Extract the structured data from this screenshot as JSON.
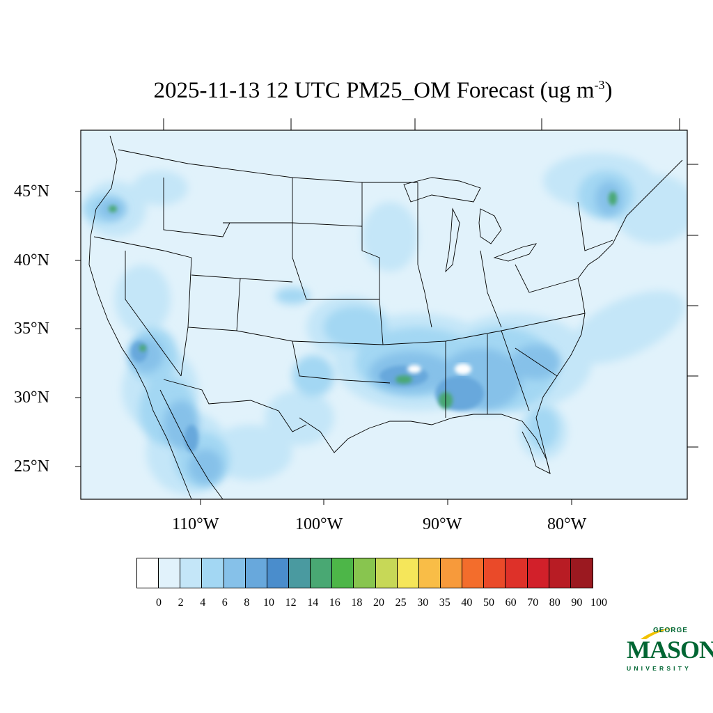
{
  "title": {
    "main": "2025-11-13 12 UTC PM25_OM Forecast (ug m",
    "exponent": "-3",
    "close": ")"
  },
  "lat_labels": [
    "45°N",
    "40°N",
    "35°N",
    "30°N",
    "25°N"
  ],
  "lon_labels": [
    "110°W",
    "100°W",
    "90°W",
    "80°W"
  ],
  "colorbar": {
    "labels": [
      "0",
      "2",
      "4",
      "6",
      "8",
      "10",
      "12",
      "14",
      "16",
      "18",
      "20",
      "25",
      "30",
      "35",
      "40",
      "50",
      "60",
      "70",
      "80",
      "90",
      "100"
    ],
    "colors": [
      "#ffffff",
      "#e1f2fb",
      "#c4e6f8",
      "#a3d7f3",
      "#86c1e9",
      "#68a8dc",
      "#4a8dcc",
      "#4a9aa0",
      "#49a873",
      "#4db648",
      "#88c54f",
      "#c7d857",
      "#f5e65a",
      "#f9bd47",
      "#f79a3b",
      "#f36d2c",
      "#ea4a29",
      "#de3129",
      "#d2202a",
      "#b81c24",
      "#9b1920"
    ]
  },
  "logo": {
    "line1": "GEORGE",
    "line2": "MASON",
    "line3": "UNIVERSITY",
    "color": "#006633",
    "accent": "#f2c200"
  },
  "map_colors": {
    "base": "#e1f2fb",
    "light": "#c4e6f8",
    "mid": "#a3d7f3",
    "medium": "#86c1e9",
    "dark": "#68a8dc",
    "darker": "#4a8dcc",
    "green": "#49a873",
    "brightgreen": "#4db648",
    "white": "#ffffff"
  }
}
